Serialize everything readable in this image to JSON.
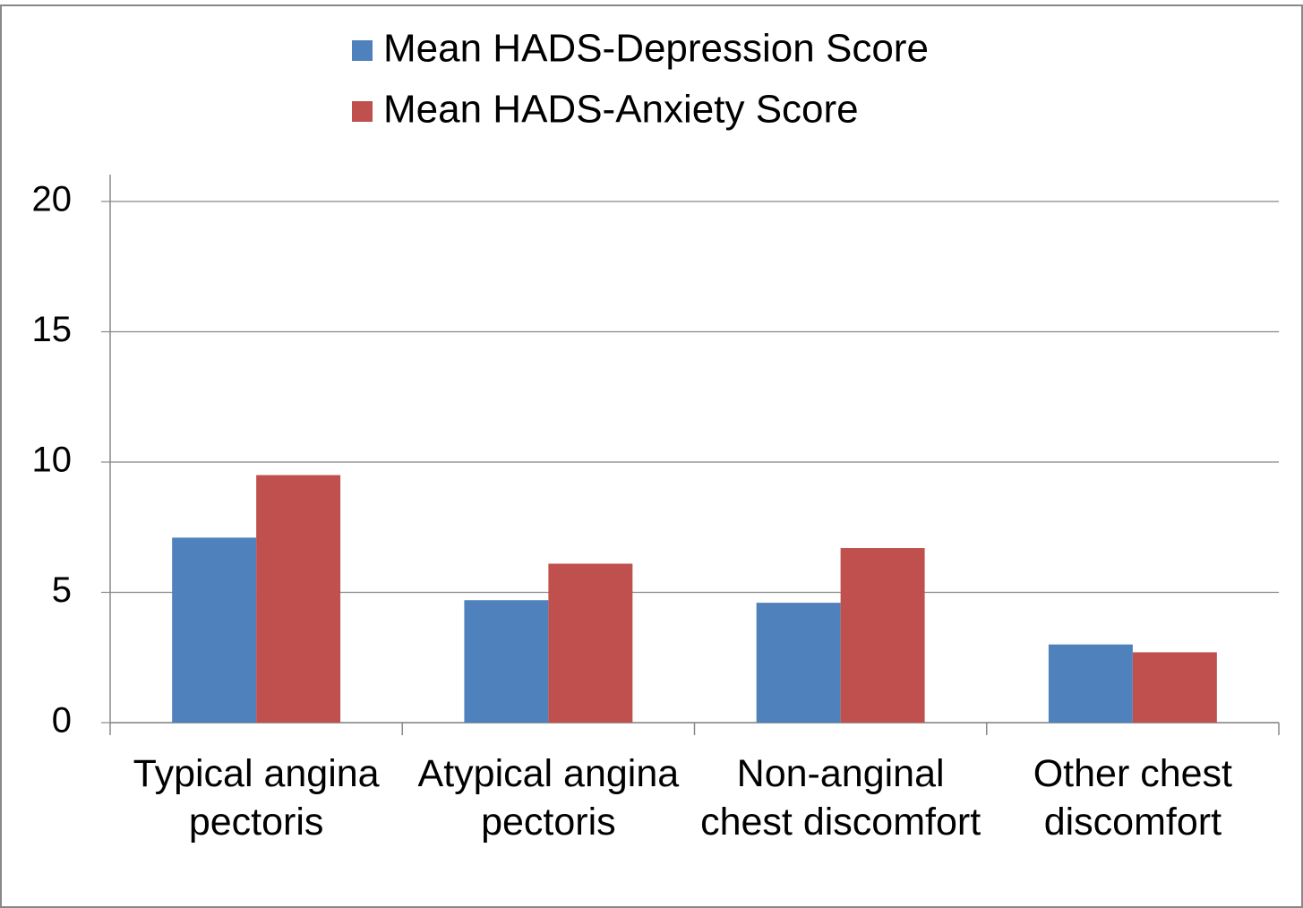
{
  "chart_data": {
    "type": "bar",
    "categories": [
      "Typical angina pectoris",
      "Atypical angina pectoris",
      "Non-anginal chest discomfort",
      "Other chest discomfort"
    ],
    "series": [
      {
        "name": "Mean HADS-Depression Score",
        "color": "#4f81bd",
        "values": [
          7.1,
          4.7,
          4.6,
          3.0
        ]
      },
      {
        "name": "Mean HADS-Anxiety Score",
        "color": "#c0504d",
        "values": [
          9.5,
          6.1,
          6.7,
          2.7
        ]
      }
    ],
    "ylim": [
      0,
      20
    ],
    "yticks": [
      0,
      5,
      10,
      15,
      20
    ],
    "grid": true,
    "legend": "top"
  }
}
